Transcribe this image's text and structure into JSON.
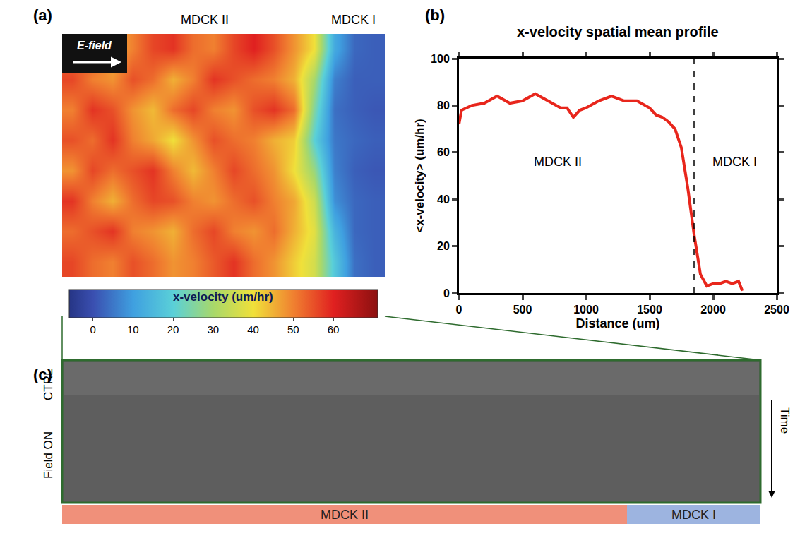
{
  "chart_data": [
    {
      "type": "heatmap",
      "panel": "(a)",
      "column_labels": [
        "MDCK II",
        "MDCK I"
      ],
      "arrow_label": "E-field",
      "z": [
        [
          52,
          55,
          45,
          50,
          56,
          58,
          52,
          50,
          56,
          60,
          55,
          48,
          40,
          12,
          3,
          2
        ],
        [
          56,
          50,
          48,
          55,
          52,
          45,
          50,
          58,
          55,
          52,
          50,
          45,
          30,
          6,
          2,
          2
        ],
        [
          50,
          58,
          55,
          48,
          44,
          52,
          56,
          50,
          48,
          55,
          58,
          52,
          25,
          4,
          2,
          1
        ],
        [
          55,
          52,
          58,
          50,
          46,
          40,
          48,
          55,
          52,
          50,
          45,
          42,
          20,
          5,
          3,
          2
        ],
        [
          48,
          56,
          52,
          55,
          58,
          50,
          44,
          50,
          56,
          52,
          48,
          40,
          28,
          6,
          2,
          1
        ],
        [
          58,
          50,
          45,
          52,
          56,
          55,
          50,
          48,
          52,
          55,
          50,
          46,
          35,
          8,
          3,
          2
        ],
        [
          52,
          55,
          58,
          50,
          48,
          45,
          52,
          56,
          50,
          48,
          52,
          45,
          38,
          14,
          3,
          2
        ],
        [
          56,
          52,
          50,
          55,
          52,
          48,
          50,
          54,
          58,
          52,
          48,
          42,
          36,
          18,
          4,
          2
        ]
      ],
      "colorbar": {
        "title": "x-velocity (um/hr)",
        "range": [
          -6,
          71
        ],
        "ticks": [
          0,
          10,
          20,
          30,
          40,
          50,
          60
        ]
      }
    },
    {
      "type": "line",
      "panel": "(b)",
      "title": "x-velocity spatial mean profile",
      "x_label": "Distance (um)",
      "y_label": "<x-velocity> (um/hr)",
      "x": [
        0,
        20,
        100,
        200,
        300,
        400,
        500,
        600,
        700,
        800,
        850,
        900,
        950,
        1000,
        1100,
        1200,
        1300,
        1400,
        1500,
        1550,
        1600,
        1650,
        1700,
        1750,
        1800,
        1850,
        1900,
        1950,
        2000,
        2050,
        2100,
        2150,
        2200,
        2230
      ],
      "values": [
        72,
        78,
        80,
        81,
        84,
        81,
        82,
        85,
        82,
        79,
        79,
        75,
        78,
        79,
        82,
        84,
        82,
        82,
        79,
        76,
        75,
        73,
        70,
        62,
        45,
        25,
        8,
        3,
        4,
        4,
        5,
        4,
        5,
        1
      ],
      "color": "#e8261c",
      "xlim": [
        0,
        2500
      ],
      "xticks": [
        0,
        500,
        1000,
        1500,
        2000,
        2500
      ],
      "ylim": [
        0,
        100
      ],
      "yticks": [
        0,
        20,
        40,
        60,
        80,
        100
      ],
      "boundary_x": 1850,
      "annotations": [
        {
          "text": "MDCK II",
          "x": 780,
          "y": 56
        },
        {
          "text": "MDCK I",
          "x": 2170,
          "y": 56
        }
      ]
    },
    {
      "type": "kymograph",
      "panel": "(c)",
      "row_labels": [
        "CTRL",
        "Field ON"
      ],
      "time_label": "Time",
      "regions": [
        {
          "name": "MDCK II",
          "color": "#f0907a"
        },
        {
          "name": "MDCK I",
          "color": "#9db4e0"
        }
      ]
    }
  ]
}
